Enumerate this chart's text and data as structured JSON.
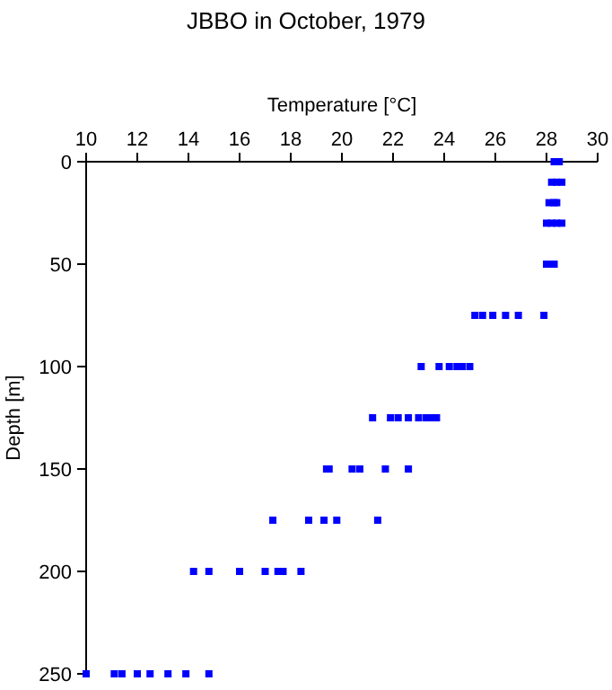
{
  "chart_data": {
    "type": "scatter",
    "title": "JBBO in October, 1979",
    "xlabel": "Temperature [°C]",
    "ylabel": "Depth [m]",
    "xlim": [
      10,
      30
    ],
    "xticks": [
      10,
      12,
      14,
      16,
      18,
      20,
      22,
      24,
      26,
      28,
      30
    ],
    "ylim": [
      250,
      0
    ],
    "yticks": [
      0,
      50,
      100,
      150,
      200,
      250
    ],
    "grid": false,
    "marker": "square",
    "series": [
      {
        "color": "#0000ff",
        "x": [
          28.3,
          28.5,
          28.2,
          28.4,
          28.6,
          28.1,
          28.3,
          28.4,
          28.0,
          28.2,
          28.4,
          28.6,
          28.0,
          28.2,
          28.3,
          25.2,
          25.5,
          25.9,
          26.4,
          26.9,
          27.9,
          23.1,
          23.8,
          24.2,
          24.5,
          24.7,
          25.0,
          21.2,
          21.9,
          22.2,
          22.6,
          23.0,
          23.3,
          23.5,
          23.7,
          19.4,
          19.5,
          20.4,
          20.7,
          21.7,
          22.6,
          17.3,
          18.7,
          19.3,
          19.8,
          21.4,
          14.2,
          14.8,
          16.0,
          17.0,
          17.5,
          17.7,
          18.4,
          10.0,
          11.1,
          11.4,
          12.0,
          12.5,
          13.2,
          13.9,
          14.8
        ],
        "values": [
          0,
          0,
          10,
          10,
          10,
          20,
          20,
          20,
          30,
          30,
          30,
          30,
          50,
          50,
          50,
          75,
          75,
          75,
          75,
          75,
          75,
          100,
          100,
          100,
          100,
          100,
          100,
          125,
          125,
          125,
          125,
          125,
          125,
          125,
          125,
          150,
          150,
          150,
          150,
          150,
          150,
          175,
          175,
          175,
          175,
          175,
          200,
          200,
          200,
          200,
          200,
          200,
          200,
          250,
          250,
          250,
          250,
          250,
          250,
          250,
          250
        ]
      }
    ]
  }
}
